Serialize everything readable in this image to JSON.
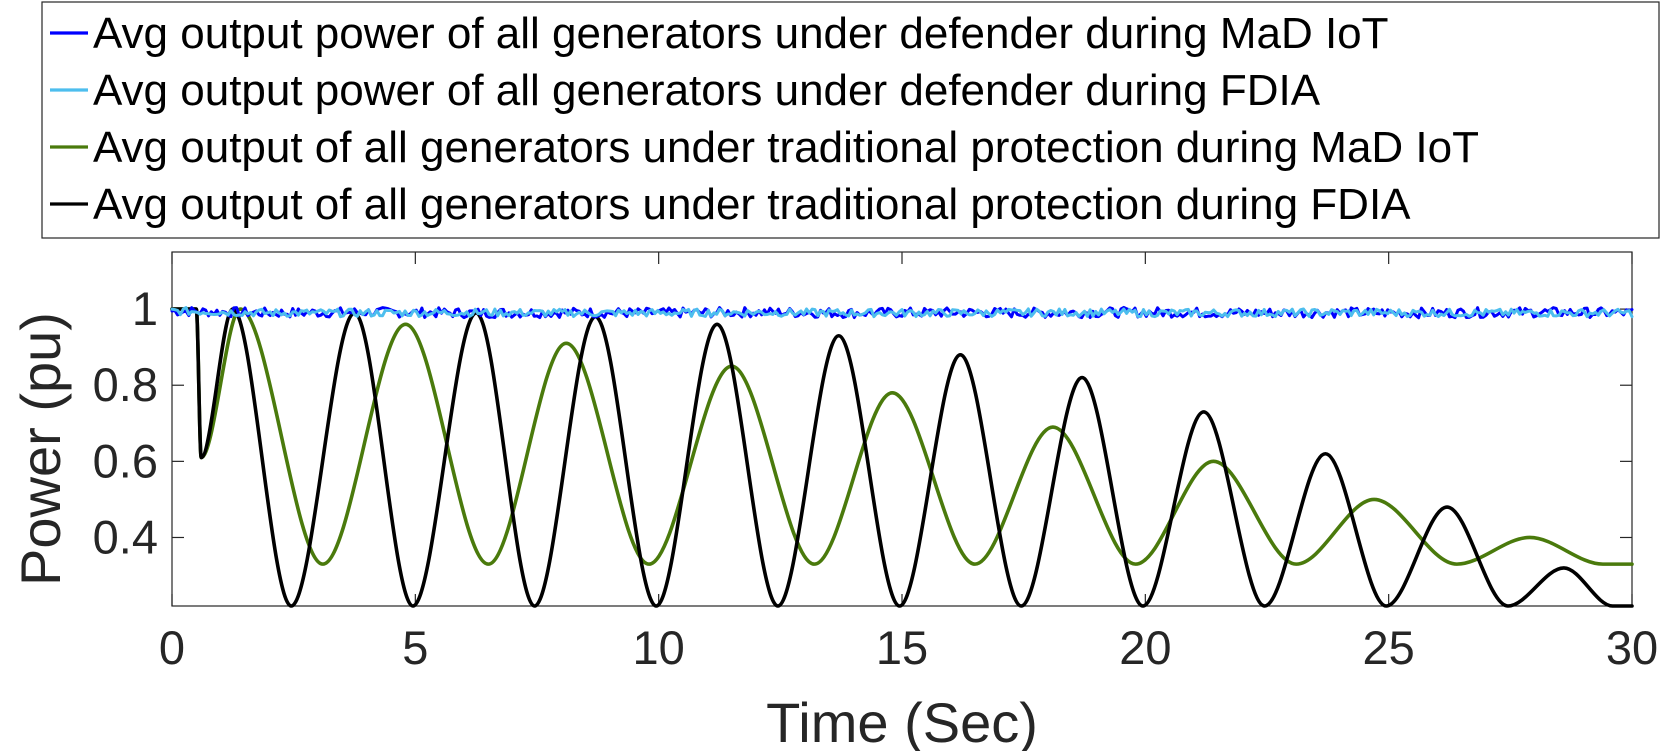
{
  "chart_data": {
    "type": "line",
    "title": "",
    "xlabel": "Time (Sec)",
    "ylabel": "Power (pu)",
    "xlim": [
      0,
      30
    ],
    "ylim": [
      0.22,
      1.15
    ],
    "xticks": [
      0,
      5,
      10,
      15,
      20,
      25,
      30
    ],
    "xtick_labels": [
      "0",
      "5",
      "10",
      "15",
      "20",
      "25",
      "30"
    ],
    "yticks": [
      0.4,
      0.6,
      0.8,
      1
    ],
    "ytick_labels": [
      "0.4",
      "0.6",
      "0.8",
      "1"
    ],
    "grid": false,
    "legend_position": "top",
    "series": [
      {
        "name": "Avg output power of all generators under defender during MaD IoT",
        "color": "#0000ff",
        "style": "noisy-flat",
        "x": [
          0,
          2,
          4,
          6,
          8,
          10,
          12,
          14,
          16,
          18,
          20,
          22,
          24,
          26,
          28,
          30
        ],
        "values": [
          0.995,
          0.99,
          0.992,
          0.99,
          0.991,
          0.99,
          0.992,
          0.99,
          0.991,
          0.99,
          0.992,
          0.99,
          0.991,
          0.99,
          0.992,
          0.99
        ]
      },
      {
        "name": "Avg output power of all generators under defender during FDIA",
        "color": "#4dbeee",
        "style": "noisy-flat",
        "x": [
          0,
          2,
          4,
          6,
          8,
          10,
          12,
          14,
          16,
          18,
          20,
          22,
          24,
          26,
          28,
          30
        ],
        "values": [
          0.995,
          0.99,
          0.99,
          0.991,
          0.99,
          0.99,
          0.991,
          0.99,
          0.99,
          0.991,
          0.99,
          0.99,
          0.991,
          0.99,
          0.99,
          0.99
        ]
      },
      {
        "name": "Avg output of all generators under traditional protection during MaD IoT",
        "color": "#4a7a0c",
        "style": "smooth",
        "x": [
          0,
          0.5,
          0.6,
          1.4,
          3.1,
          4.8,
          6.5,
          8.1,
          9.8,
          11.5,
          13.2,
          14.8,
          16.5,
          18.1,
          19.8,
          21.4,
          23.1,
          24.7,
          26.4,
          27.9,
          29.4,
          30
        ],
        "values": [
          1.0,
          1.0,
          0.61,
          1.0,
          0.33,
          0.96,
          0.33,
          0.91,
          0.33,
          0.85,
          0.33,
          0.78,
          0.33,
          0.69,
          0.33,
          0.6,
          0.33,
          0.5,
          0.33,
          0.4,
          0.33,
          0.33
        ]
      },
      {
        "name": "Avg output of all generators under traditional protection during FDIA",
        "color": "#000000",
        "style": "smooth",
        "x": [
          0,
          0.5,
          0.6,
          1.25,
          2.45,
          3.75,
          4.95,
          6.25,
          7.45,
          8.7,
          9.95,
          11.2,
          12.45,
          13.7,
          14.95,
          16.2,
          17.45,
          18.7,
          19.95,
          21.2,
          22.45,
          23.7,
          24.95,
          26.2,
          27.45,
          28.6,
          29.6,
          30
        ],
        "values": [
          1.0,
          1.0,
          0.61,
          1.0,
          0.22,
          0.99,
          0.22,
          0.99,
          0.22,
          0.98,
          0.22,
          0.96,
          0.22,
          0.93,
          0.22,
          0.88,
          0.22,
          0.82,
          0.22,
          0.73,
          0.22,
          0.62,
          0.22,
          0.48,
          0.22,
          0.32,
          0.22,
          0.22
        ]
      }
    ]
  }
}
